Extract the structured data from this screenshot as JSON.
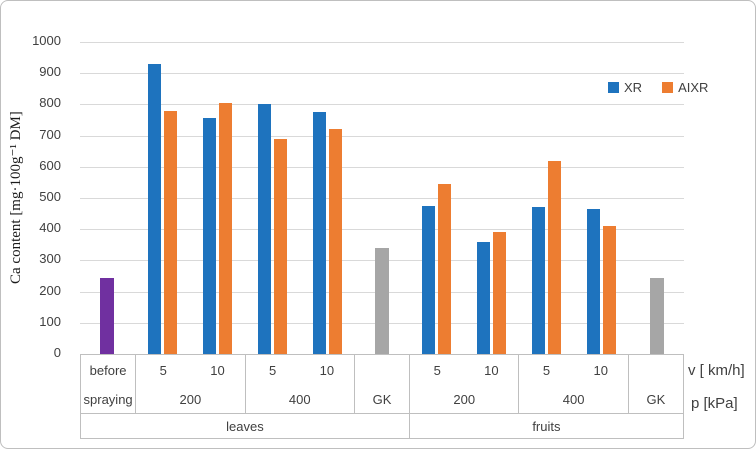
{
  "chart_data": {
    "type": "bar",
    "title": "",
    "ylabel": "Ca content [mg·100g⁻¹ DM]",
    "ylim": [
      0,
      1000
    ],
    "yticks": [
      0,
      100,
      200,
      300,
      400,
      500,
      600,
      700,
      800,
      900,
      1000
    ],
    "grid": true,
    "legend": [
      "XR",
      "AIXR"
    ],
    "legend_position": "top-right",
    "series_colors": {
      "XR": "#1E73BE",
      "AIXR": "#ED7D31",
      "before_spraying": "#7030A0",
      "GK": "#A6A6A6"
    },
    "axis_units": {
      "v": "v [ km/h]",
      "p": "p [kPa]"
    },
    "sections": [
      {
        "label": "leaves",
        "groups": [
          {
            "kind": "single",
            "v_label": "before",
            "p_label": "spraying",
            "series": "before_spraying",
            "value": 245
          },
          {
            "kind": "pair",
            "p_label": "200",
            "subgroups": [
              {
                "v_label": "5",
                "XR": 930,
                "AIXR": 780
              },
              {
                "v_label": "10",
                "XR": 755,
                "AIXR": 805
              }
            ]
          },
          {
            "kind": "pair",
            "p_label": "400",
            "subgroups": [
              {
                "v_label": "5",
                "XR": 800,
                "AIXR": 690
              },
              {
                "v_label": "10",
                "XR": 775,
                "AIXR": 720
              }
            ]
          },
          {
            "kind": "single",
            "v_label": "",
            "p_label": "GK",
            "series": "GK",
            "value": 340
          }
        ]
      },
      {
        "label": "fruits",
        "groups": [
          {
            "kind": "pair",
            "p_label": "200",
            "subgroups": [
              {
                "v_label": "5",
                "XR": 475,
                "AIXR": 545
              },
              {
                "v_label": "10",
                "XR": 360,
                "AIXR": 390
              }
            ]
          },
          {
            "kind": "pair",
            "p_label": "400",
            "subgroups": [
              {
                "v_label": "5",
                "XR": 470,
                "AIXR": 620
              },
              {
                "v_label": "10",
                "XR": 465,
                "AIXR": 410
              }
            ]
          },
          {
            "kind": "single",
            "v_label": "",
            "p_label": "GK",
            "series": "GK",
            "value": 245
          }
        ]
      }
    ]
  }
}
